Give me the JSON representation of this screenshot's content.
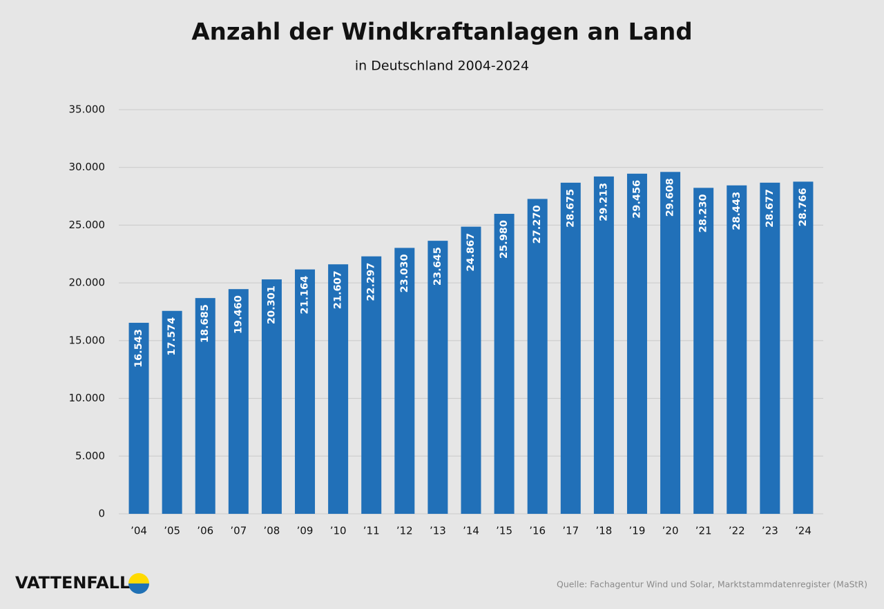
{
  "chart_data": {
    "type": "bar",
    "title": "Anzahl der Windkraftanlagen an Land",
    "subtitle": "in Deutschland 2004-2024",
    "categories": [
      "’04",
      "’05",
      "’06",
      "’07",
      "’08",
      "’09",
      "’10",
      "’11",
      "’12",
      "’13",
      "’14",
      "’15",
      "’16",
      "’17",
      "’18",
      "’19",
      "’20",
      "’21",
      "’22",
      "’23",
      "’24"
    ],
    "values": [
      16543,
      17574,
      18685,
      19460,
      20301,
      21164,
      21607,
      22297,
      23030,
      23645,
      24867,
      25980,
      27270,
      28675,
      29213,
      29456,
      29608,
      28230,
      28443,
      28677,
      28766
    ],
    "value_labels": [
      "16.543",
      "17.574",
      "18.685",
      "19.460",
      "20.301",
      "21.164",
      "21.607",
      "22.297",
      "23.030",
      "23.645",
      "24.867",
      "25.980",
      "27.270",
      "28.675",
      "29.213",
      "29.456",
      "29.608",
      "28.230",
      "28.443",
      "28.677",
      "28.766"
    ],
    "color": "#2170b8",
    "ylim": [
      0,
      35000
    ],
    "yticks": [
      0,
      {
        "value": 5000,
        "label": "5.000"
      },
      {
        "value": 10000,
        "label": "10.000"
      },
      {
        "value": 15000,
        "label": "15.000"
      },
      {
        "value": 20000,
        "label": "20.000"
      },
      {
        "value": 25000,
        "label": "25.000"
      },
      {
        "value": 30000,
        "label": "30.000"
      },
      {
        "value": 35000,
        "label": "35.000"
      }
    ],
    "grid": true,
    "brand": "VATTENFALL",
    "source": "Quelle: Fachagentur Wind und Solar, Marktstammdatenregister (MaStR)"
  }
}
